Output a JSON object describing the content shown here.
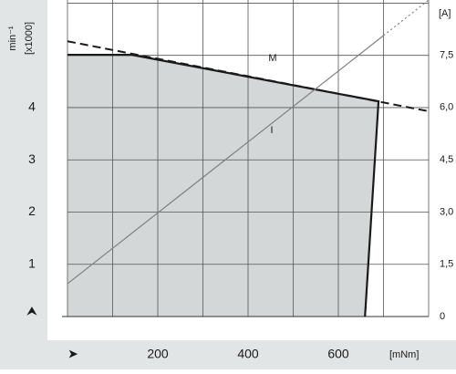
{
  "chart_data": {
    "type": "motor-characteristic",
    "y_label": "min⁻¹",
    "y_label_2": "[x1000]",
    "y2_label": "[A]",
    "x_label": "[mNm]",
    "xlim": [
      0,
      800
    ],
    "xticks": [
      200,
      400,
      600
    ],
    "x_gridlines": [
      0,
      100,
      200,
      300,
      400,
      500,
      600,
      700,
      800
    ],
    "ylim": [
      0,
      6.06
    ],
    "yticks": [
      1,
      2,
      3,
      4
    ],
    "y_gridlines": [
      0,
      1,
      2,
      3,
      4,
      5,
      6
    ],
    "y2lim": [
      0,
      9.08
    ],
    "y2ticks": [
      0,
      {
        "value": 1.5,
        "label": "1,5"
      },
      {
        "value": 3.0,
        "label": "3,0"
      },
      {
        "value": 4.5,
        "label": "4,5"
      },
      {
        "value": 6.0,
        "label": "6,0"
      },
      {
        "value": 7.5,
        "label": "7,5"
      }
    ],
    "series": [
      {
        "name": "M",
        "color": "#1a1a1a",
        "x": [
          0,
          800
        ],
        "values": [
          5.27,
          3.93
        ]
      },
      {
        "name": "I",
        "color": "#808080",
        "axis": "y2",
        "x": [
          0,
          700,
          800
        ],
        "values": [
          0.94,
          8.06,
          9.08
        ]
      }
    ],
    "operating_range": {
      "color": "#d3d7d7",
      "x": [
        0,
        143,
        689,
        659,
        0
      ],
      "values": [
        5.01,
        5.01,
        4.12,
        0,
        0
      ]
    }
  }
}
